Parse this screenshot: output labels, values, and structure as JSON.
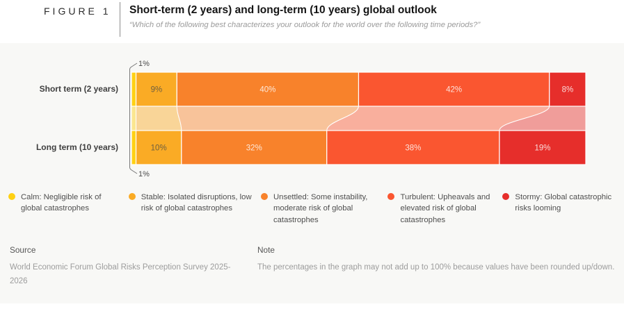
{
  "figure": {
    "label": "FIGURE 1",
    "title": "Short-term (2 years) and long-term (10 years) global outlook",
    "subtitle": "“Which of the following best characterizes your outlook for the world over the following time periods?”"
  },
  "chart_data": {
    "type": "bar",
    "subtype": "horizontal-stacked-with-flows",
    "unit": "%",
    "xlim": [
      0,
      100
    ],
    "categories": [
      "Short term (2 years)",
      "Long term (10 years)"
    ],
    "series": [
      {
        "name": "Calm",
        "color": "#FFD114",
        "values": [
          1,
          1
        ],
        "label_dark": true,
        "callout": true
      },
      {
        "name": "Stable",
        "color": "#FAAB25",
        "values": [
          9,
          10
        ],
        "label_dark": true,
        "callout": false
      },
      {
        "name": "Unsettled",
        "color": "#F8822B",
        "values": [
          40,
          32
        ],
        "label_dark": false,
        "callout": false
      },
      {
        "name": "Turbulent",
        "color": "#FA5630",
        "values": [
          42,
          38
        ],
        "label_dark": false,
        "callout": false
      },
      {
        "name": "Stormy",
        "color": "#E62E2B",
        "values": [
          8,
          19
        ],
        "label_dark": false,
        "callout": false
      }
    ]
  },
  "legend": {
    "items": [
      {
        "name": "Calm",
        "color": "#FFD114",
        "label": "Calm: Negligible risk of global catastrophes"
      },
      {
        "name": "Stable",
        "color": "#FAAB25",
        "label": "Stable: Isolated disruptions, low risk of global catastrophes"
      },
      {
        "name": "Unsettled",
        "color": "#F8822B",
        "label": "Unsettled: Some instability, moderate risk of global catastrophes"
      },
      {
        "name": "Turbulent",
        "color": "#FA5630",
        "label": "Turbulent: Upheavals and elevated risk of global catastrophes"
      },
      {
        "name": "Stormy",
        "color": "#E62E2B",
        "label": "Stormy: Global catastrophic risks looming"
      }
    ]
  },
  "footer": {
    "source_heading": "Source",
    "source_text": "World Economic Forum Global Risks Perception Survey 2025-2026",
    "note_heading": "Note",
    "note_text": "The percentages in the graph may not add up to 100% because values have been rounded up/down."
  }
}
